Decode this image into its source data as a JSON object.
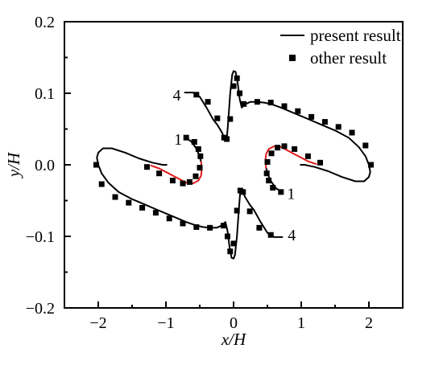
{
  "chart_data": {
    "type": "line",
    "xlabel": "x/H",
    "ylabel": "y/H",
    "xlim": [
      -2.5,
      2.5
    ],
    "ylim": [
      -0.2,
      0.2
    ],
    "xticks": [
      "−2",
      "−1",
      "0",
      "1",
      "2"
    ],
    "xtick_values": [
      -2,
      -1,
      0,
      1,
      2
    ],
    "yticks": [
      "−0.2",
      "−0.1",
      "0.0",
      "0.1",
      "0.2"
    ],
    "ytick_values": [
      -0.2,
      -0.1,
      0.0,
      0.1,
      0.2
    ],
    "legend_position": "top-right",
    "legend": {
      "line_label": "present result",
      "marker_label": "other result"
    },
    "colors": {
      "line": "#000000",
      "highlight": "#e0191b",
      "marker": "#000000"
    },
    "annotations": [
      {
        "text": "4",
        "x": -0.84,
        "y": 0.098
      },
      {
        "text": "1",
        "x": -0.82,
        "y": 0.036
      },
      {
        "text": "1",
        "x": 0.85,
        "y": -0.04
      },
      {
        "text": "4",
        "x": 0.86,
        "y": -0.098
      }
    ],
    "series": [
      {
        "curve": "present-4-left-branch",
        "x": [
          -0.72,
          -0.6,
          -0.5,
          -0.4,
          -0.3,
          -0.24,
          -0.17,
          -0.12,
          -0.1,
          -0.08,
          -0.05,
          -0.02,
          0.0,
          0.03,
          0.06,
          0.09,
          0.12,
          0.18,
          0.25,
          0.35,
          0.45,
          0.55,
          0.7,
          0.9,
          1.1,
          1.3,
          1.5,
          1.7,
          1.85,
          1.95,
          2.0,
          2.02,
          2.0,
          1.93,
          1.8,
          1.6,
          1.4,
          1.2,
          1.05,
          0.99
        ],
        "y": [
          0.101,
          0.101,
          0.095,
          0.08,
          0.063,
          0.056,
          0.045,
          0.034,
          0.036,
          0.06,
          0.1,
          0.126,
          0.131,
          0.13,
          0.115,
          0.092,
          0.08,
          0.085,
          0.088,
          0.088,
          0.087,
          0.085,
          0.08,
          0.072,
          0.064,
          0.056,
          0.048,
          0.038,
          0.025,
          0.012,
          0.0,
          -0.01,
          -0.017,
          -0.023,
          -0.023,
          -0.017,
          -0.009,
          -0.003,
          0.0,
          0.0
        ]
      },
      {
        "curve": "present-4-right-branch",
        "x": [
          0.72,
          0.6,
          0.5,
          0.4,
          0.3,
          0.24,
          0.17,
          0.12,
          0.1,
          0.08,
          0.05,
          0.02,
          0.0,
          -0.03,
          -0.06,
          -0.09,
          -0.12,
          -0.18,
          -0.25,
          -0.35,
          -0.45,
          -0.55,
          -0.7,
          -0.9,
          -1.1,
          -1.3,
          -1.5,
          -1.7,
          -1.85,
          -1.95,
          -2.0,
          -2.02,
          -2.0,
          -1.93,
          -1.8,
          -1.6,
          -1.4,
          -1.2,
          -1.05,
          -0.99
        ],
        "y": [
          -0.101,
          -0.101,
          -0.095,
          -0.08,
          -0.063,
          -0.056,
          -0.045,
          -0.034,
          -0.036,
          -0.06,
          -0.1,
          -0.126,
          -0.131,
          -0.13,
          -0.115,
          -0.092,
          -0.08,
          -0.085,
          -0.088,
          -0.088,
          -0.087,
          -0.085,
          -0.08,
          -0.072,
          -0.064,
          -0.056,
          -0.048,
          -0.038,
          -0.025,
          -0.012,
          0.0,
          0.01,
          0.017,
          0.023,
          0.023,
          0.017,
          0.009,
          0.003,
          0.0,
          0.0
        ]
      },
      {
        "curve": "present-1-left-black",
        "x": [
          -0.72,
          -0.63,
          -0.56,
          -0.51,
          -0.48
        ],
        "y": [
          0.038,
          0.033,
          0.024,
          0.014,
          0.004
        ]
      },
      {
        "curve": "present-1-left-red",
        "x": [
          -0.48,
          -0.47,
          -0.48,
          -0.52,
          -0.6,
          -0.7,
          -0.8,
          -0.9,
          -1.0,
          -1.1,
          -1.22
        ],
        "y": [
          0.004,
          -0.006,
          -0.015,
          -0.022,
          -0.026,
          -0.025,
          -0.02,
          -0.015,
          -0.01,
          -0.005,
          -0.001
        ]
      },
      {
        "curve": "present-1-right-black",
        "x": [
          0.72,
          0.63,
          0.56,
          0.51,
          0.48
        ],
        "y": [
          -0.038,
          -0.033,
          -0.024,
          -0.014,
          -0.004
        ]
      },
      {
        "curve": "present-1-right-red",
        "x": [
          0.48,
          0.47,
          0.48,
          0.52,
          0.6,
          0.7,
          0.8,
          0.9,
          1.0,
          1.1,
          1.22
        ],
        "y": [
          -0.004,
          0.006,
          0.015,
          0.022,
          0.026,
          0.025,
          0.02,
          0.015,
          0.01,
          0.005,
          0.001
        ]
      },
      {
        "curve": "other-result",
        "x": [
          -0.55,
          -0.38,
          -0.24,
          -0.14,
          -0.1,
          -0.05,
          0.0,
          0.05,
          0.09,
          0.15,
          0.35,
          0.55,
          0.75,
          0.95,
          1.15,
          1.35,
          1.55,
          1.75,
          1.95,
          2.03,
          0.55,
          0.38,
          0.24,
          0.14,
          0.1,
          0.05,
          0.0,
          -0.05,
          -0.09,
          -0.15,
          -0.35,
          -0.55,
          -0.75,
          -0.95,
          -1.15,
          -1.35,
          -1.55,
          -1.75,
          -1.95,
          -2.03,
          -0.7,
          -0.58,
          -0.52,
          -0.49,
          -0.5,
          -0.56,
          -0.65,
          -0.75,
          -0.9,
          -1.1,
          -1.28,
          0.7,
          0.58,
          0.52,
          0.49,
          0.5,
          0.56,
          0.65,
          0.75,
          0.9,
          1.1,
          1.28
        ],
        "y": [
          0.098,
          0.088,
          0.065,
          0.038,
          0.036,
          0.064,
          0.11,
          0.121,
          0.1,
          0.085,
          0.088,
          0.087,
          0.082,
          0.075,
          0.067,
          0.06,
          0.053,
          0.045,
          0.027,
          0.0,
          -0.098,
          -0.088,
          -0.065,
          -0.038,
          -0.036,
          -0.064,
          -0.11,
          -0.121,
          -0.1,
          -0.085,
          -0.088,
          -0.087,
          -0.082,
          -0.075,
          -0.067,
          -0.06,
          -0.053,
          -0.045,
          -0.027,
          0.0,
          0.038,
          0.032,
          0.022,
          0.012,
          -0.004,
          -0.016,
          -0.024,
          -0.026,
          -0.022,
          -0.012,
          -0.003,
          -0.038,
          -0.032,
          -0.022,
          -0.012,
          0.004,
          0.016,
          0.024,
          0.026,
          0.022,
          0.012,
          0.003
        ]
      }
    ]
  }
}
